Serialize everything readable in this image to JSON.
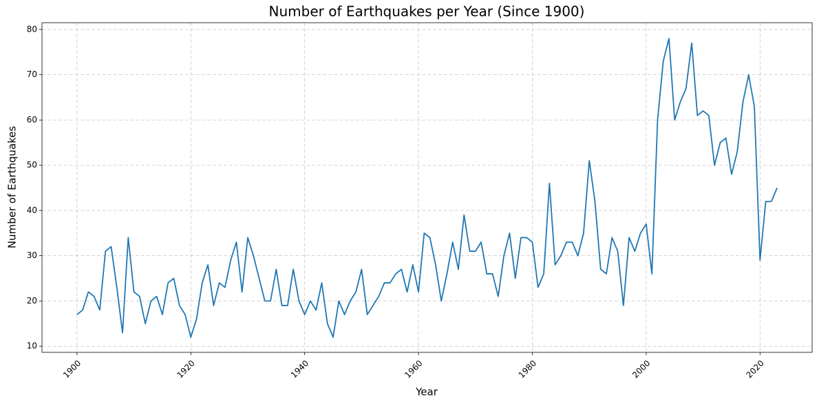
{
  "chart_data": {
    "type": "line",
    "title": "Number of Earthquakes per Year (Since 1900)",
    "x_label": "Year",
    "y_label": "Number of Earthquakes",
    "x": [
      1900,
      1901,
      1902,
      1903,
      1904,
      1905,
      1906,
      1907,
      1908,
      1909,
      1910,
      1911,
      1912,
      1913,
      1914,
      1915,
      1916,
      1917,
      1918,
      1919,
      1920,
      1921,
      1922,
      1923,
      1924,
      1925,
      1926,
      1927,
      1928,
      1929,
      1930,
      1931,
      1932,
      1933,
      1934,
      1935,
      1936,
      1937,
      1938,
      1939,
      1940,
      1941,
      1942,
      1943,
      1944,
      1945,
      1946,
      1947,
      1948,
      1949,
      1950,
      1951,
      1952,
      1953,
      1954,
      1955,
      1956,
      1957,
      1958,
      1959,
      1960,
      1961,
      1962,
      1963,
      1964,
      1965,
      1966,
      1967,
      1968,
      1969,
      1970,
      1971,
      1972,
      1973,
      1974,
      1975,
      1976,
      1977,
      1978,
      1979,
      1980,
      1981,
      1982,
      1983,
      1984,
      1985,
      1986,
      1987,
      1988,
      1989,
      1990,
      1991,
      1992,
      1993,
      1994,
      1995,
      1996,
      1997,
      1998,
      1999,
      2000,
      2001,
      2002,
      2003,
      2004,
      2005,
      2006,
      2007,
      2008,
      2009,
      2010,
      2011,
      2012,
      2013,
      2014,
      2015,
      2016,
      2017,
      2018,
      2019,
      2020,
      2021,
      2022,
      2023
    ],
    "values": [
      17,
      18,
      22,
      21,
      18,
      31,
      32,
      23,
      13,
      34,
      22,
      21,
      15,
      20,
      21,
      17,
      24,
      25,
      19,
      17,
      12,
      16,
      24,
      28,
      19,
      24,
      23,
      29,
      33,
      22,
      34,
      30,
      25,
      20,
      20,
      27,
      19,
      19,
      27,
      20,
      17,
      20,
      18,
      24,
      15,
      12,
      20,
      17,
      20,
      22,
      27,
      17,
      19,
      21,
      24,
      24,
      26,
      27,
      22,
      28,
      22,
      35,
      34,
      28,
      20,
      26,
      33,
      27,
      39,
      31,
      31,
      33,
      26,
      26,
      21,
      30,
      35,
      25,
      34,
      34,
      33,
      23,
      26,
      46,
      28,
      30,
      33,
      33,
      30,
      35,
      51,
      42,
      27,
      26,
      34,
      31,
      19,
      34,
      31,
      35,
      37,
      26,
      60,
      73,
      78,
      60,
      64,
      67,
      77,
      61,
      62,
      61,
      50,
      55,
      56,
      48,
      53,
      64,
      70,
      63,
      29,
      42,
      42,
      45
    ],
    "color": "#1f77b4",
    "xlim": [
      1893.85,
      2029.15
    ],
    "xticks": [
      1900,
      1920,
      1940,
      1960,
      1980,
      2000,
      2020
    ],
    "ylim": [
      8.65,
      81.5
    ],
    "yticks": [
      10,
      20,
      30,
      40,
      50,
      60,
      70,
      80
    ],
    "grid": true
  }
}
